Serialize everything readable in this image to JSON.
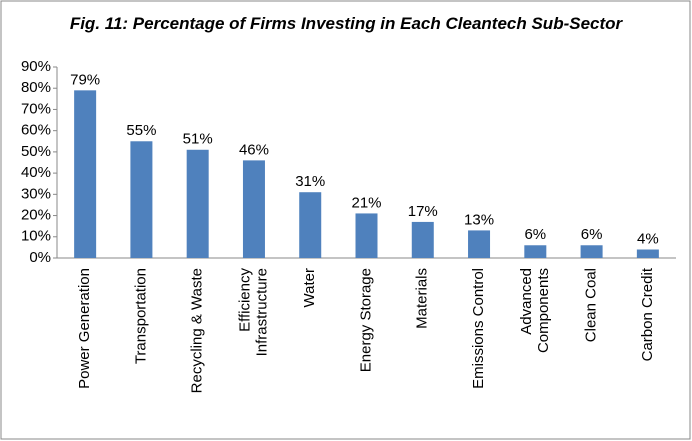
{
  "chart_data": {
    "type": "bar",
    "title": "Fig. 11: Percentage of Firms Investing in Each Cleantech Sub-Sector",
    "categories": [
      "Power Generation",
      "Transportation",
      "Recycling & Waste",
      "Efficiency Infrastructure",
      "Water",
      "Energy Storage",
      "Materials",
      "Emissions Control",
      "Advanced Components",
      "Clean Coal",
      "Carbon Credit"
    ],
    "values": [
      79,
      55,
      51,
      46,
      31,
      21,
      17,
      13,
      6,
      6,
      4
    ],
    "value_labels": [
      "79%",
      "55%",
      "51%",
      "46%",
      "31%",
      "21%",
      "17%",
      "13%",
      "6%",
      "6%",
      "4%"
    ],
    "color": "#4f81bd",
    "ylim": [
      0,
      90
    ],
    "yticks": [
      {
        "value": 0,
        "label": "0%"
      },
      {
        "value": 10,
        "label": "10%"
      },
      {
        "value": 20,
        "label": "20%"
      },
      {
        "value": 30,
        "label": "30%"
      },
      {
        "value": 40,
        "label": "40%"
      },
      {
        "value": 50,
        "label": "50%"
      },
      {
        "value": 60,
        "label": "60%"
      },
      {
        "value": 70,
        "label": "70%"
      },
      {
        "value": 80,
        "label": "80%"
      },
      {
        "value": 90,
        "label": "90%"
      }
    ],
    "grid": false
  }
}
